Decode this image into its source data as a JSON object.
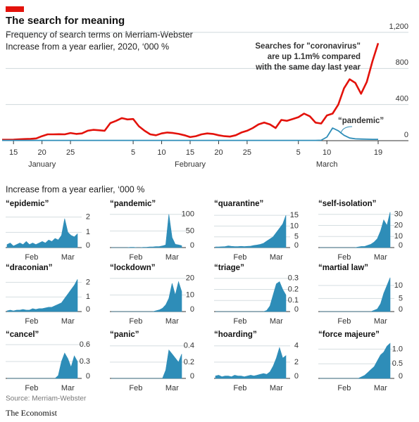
{
  "header": {
    "title": "The search for meaning",
    "subtitle": [
      "Frequency of search terms on Merriam-Webster",
      "Increase from a year earlier, 2020, ‘000 %"
    ]
  },
  "small_multiples_title": "Increase from a year earlier, ‘000 %",
  "footer": {
    "source": "Source: Merriam-Webster",
    "brand": "The Economist"
  },
  "chart_data": [
    {
      "type": "line",
      "x": [
        13,
        14,
        15,
        16,
        17,
        18,
        19,
        20,
        21,
        22,
        23,
        24,
        25,
        26,
        27,
        28,
        29,
        30,
        31,
        32,
        33,
        34,
        35,
        36,
        37,
        38,
        39,
        40,
        41,
        42,
        43,
        44,
        45,
        46,
        47,
        48,
        49,
        50,
        51,
        52,
        53,
        54,
        55,
        56,
        57,
        58,
        59,
        60,
        61,
        62,
        63,
        64,
        65,
        66,
        67,
        68,
        69,
        70,
        71,
        72,
        73,
        74,
        75,
        76,
        77,
        78,
        79
      ],
      "series": [
        {
          "color": "#e3120b",
          "values": [
            10,
            10,
            12,
            15,
            18,
            20,
            25,
            50,
            70,
            70,
            72,
            70,
            85,
            75,
            80,
            110,
            120,
            115,
            110,
            195,
            220,
            250,
            235,
            240,
            160,
            110,
            70,
            60,
            80,
            90,
            85,
            75,
            60,
            40,
            50,
            70,
            80,
            75,
            60,
            50,
            45,
            60,
            90,
            110,
            140,
            180,
            200,
            180,
            140,
            230,
            220,
            240,
            260,
            300,
            270,
            200,
            190,
            280,
            300,
            400,
            580,
            680,
            640,
            520,
            650,
            880,
            1080
          ]
        },
        {
          "color": "#2e8db8",
          "values": [
            3,
            3,
            3,
            3,
            3,
            3,
            3,
            3,
            3,
            3,
            3,
            3,
            3,
            3,
            3,
            3,
            3,
            3,
            3,
            3,
            3,
            3,
            3,
            3,
            3,
            3,
            3,
            3,
            3,
            3,
            3,
            3,
            3,
            3,
            3,
            3,
            3,
            3,
            3,
            3,
            3,
            3,
            3,
            3,
            3,
            3,
            3,
            3,
            3,
            3,
            3,
            3,
            3,
            3,
            3,
            3,
            5,
            40,
            140,
            110,
            60,
            30,
            20,
            18,
            16,
            15,
            15
          ]
        }
      ],
      "xlim": [
        13,
        79
      ],
      "xticks": [
        {
          "value": 15,
          "label": "15"
        },
        {
          "value": 20,
          "label": "20"
        },
        {
          "value": 25,
          "label": "25"
        },
        {
          "value": 36,
          "label": "5"
        },
        {
          "value": 41,
          "label": "10"
        },
        {
          "value": 46,
          "label": "15"
        },
        {
          "value": 51,
          "label": "20"
        },
        {
          "value": 56,
          "label": "25"
        },
        {
          "value": 65,
          "label": "5"
        },
        {
          "value": 70,
          "label": "10"
        },
        {
          "value": 79,
          "label": "19"
        }
      ],
      "months": [
        {
          "value": 20,
          "label": "January"
        },
        {
          "value": 46,
          "label": "February"
        },
        {
          "value": 70,
          "label": "March"
        }
      ],
      "ylim": [
        0,
        1200
      ],
      "yticks": [
        0,
        400,
        800,
        {
          "value": 1200,
          "label": "1,200"
        }
      ],
      "grid": true,
      "annotations": [
        {
          "text": [
            "Searches for \"coronavirus\"",
            "are up 1.1m% compared",
            "with the same day last year"
          ],
          "color": "#e3120b"
        },
        {
          "text": [
            "“pandemic”"
          ],
          "color": "#2e8db8"
        }
      ]
    },
    {
      "type": "area",
      "title": "“epidemic”",
      "color": "#2e8db8",
      "x": [
        13,
        16,
        19,
        22,
        25,
        28,
        31,
        34,
        37,
        40,
        43,
        46,
        49,
        52,
        55,
        58,
        61,
        64,
        67,
        70,
        73,
        76,
        79
      ],
      "values": [
        0.2,
        0.3,
        0.1,
        0.2,
        0.3,
        0.2,
        0.4,
        0.2,
        0.3,
        0.2,
        0.3,
        0.4,
        0.3,
        0.5,
        0.4,
        0.6,
        0.5,
        0.8,
        1.9,
        1.0,
        0.8,
        0.7,
        0.9
      ],
      "xlim": [
        13,
        79
      ],
      "xticks": [
        {
          "value": 36,
          "label": "Feb"
        },
        {
          "value": 70,
          "label": "Mar"
        }
      ],
      "ylim": [
        0,
        2.4
      ],
      "yticks": [
        0,
        1,
        2
      ]
    },
    {
      "type": "area",
      "title": "“pandemic”",
      "color": "#2e8db8",
      "x": [
        13,
        16,
        19,
        22,
        25,
        28,
        31,
        34,
        37,
        40,
        43,
        46,
        49,
        52,
        55,
        58,
        61,
        64,
        67,
        70,
        73,
        76,
        79
      ],
      "values": [
        0,
        0,
        0,
        0,
        0,
        0,
        1,
        1,
        0,
        0,
        1,
        1,
        2,
        2,
        3,
        3,
        5,
        8,
        100,
        30,
        10,
        8,
        6
      ],
      "xlim": [
        13,
        79
      ],
      "xticks": [
        {
          "value": 36,
          "label": "Feb"
        },
        {
          "value": 70,
          "label": "Mar"
        }
      ],
      "ylim": [
        0,
        110
      ],
      "yticks": [
        0,
        50,
        100
      ]
    },
    {
      "type": "area",
      "title": "“quarantine”",
      "color": "#2e8db8",
      "x": [
        13,
        16,
        19,
        22,
        25,
        28,
        31,
        34,
        37,
        40,
        43,
        46,
        49,
        52,
        55,
        58,
        61,
        64,
        67,
        70,
        73,
        76,
        79
      ],
      "values": [
        0.3,
        0.3,
        0.4,
        0.5,
        0.8,
        0.6,
        0.5,
        0.5,
        0.6,
        0.5,
        0.6,
        0.7,
        1,
        1.2,
        1.5,
        2,
        3,
        4,
        5,
        7,
        9,
        11,
        15
      ],
      "xlim": [
        13,
        79
      ],
      "xticks": [
        {
          "value": 36,
          "label": "Feb"
        },
        {
          "value": 70,
          "label": "Mar"
        }
      ],
      "ylim": [
        0,
        17
      ],
      "yticks": [
        0,
        5,
        10,
        15
      ]
    },
    {
      "type": "area",
      "title": "“self-isolation”",
      "color": "#2e8db8",
      "x": [
        13,
        16,
        19,
        22,
        25,
        28,
        31,
        34,
        37,
        40,
        43,
        46,
        49,
        52,
        55,
        58,
        61,
        64,
        67,
        70,
        73,
        76,
        79
      ],
      "values": [
        0,
        0,
        0,
        0,
        0,
        0,
        0,
        0,
        0,
        0,
        0,
        0,
        0.5,
        1,
        1,
        2,
        3,
        5,
        8,
        15,
        25,
        20,
        32
      ],
      "xlim": [
        13,
        79
      ],
      "xticks": [
        {
          "value": 36,
          "label": "Feb"
        },
        {
          "value": 70,
          "label": "Mar"
        }
      ],
      "ylim": [
        0,
        33
      ],
      "yticks": [
        0,
        10,
        20,
        30
      ]
    },
    {
      "type": "area",
      "title": "“draconian”",
      "color": "#2e8db8",
      "x": [
        13,
        16,
        19,
        22,
        25,
        28,
        31,
        34,
        37,
        40,
        43,
        46,
        49,
        52,
        55,
        58,
        61,
        64,
        67,
        70,
        73,
        76,
        79
      ],
      "values": [
        0.05,
        0.1,
        0.05,
        0.1,
        0.1,
        0.15,
        0.1,
        0.1,
        0.2,
        0.15,
        0.2,
        0.2,
        0.25,
        0.3,
        0.3,
        0.4,
        0.5,
        0.6,
        0.9,
        1.2,
        1.5,
        1.8,
        2.2
      ],
      "xlim": [
        13,
        79
      ],
      "xticks": [
        {
          "value": 36,
          "label": "Feb"
        },
        {
          "value": 70,
          "label": "Mar"
        }
      ],
      "ylim": [
        0,
        2.5
      ],
      "yticks": [
        0,
        1,
        2
      ]
    },
    {
      "type": "area",
      "title": "“lockdown”",
      "color": "#2e8db8",
      "x": [
        13,
        16,
        19,
        22,
        25,
        28,
        31,
        34,
        37,
        40,
        43,
        46,
        49,
        52,
        55,
        58,
        61,
        64,
        67,
        70,
        73,
        76,
        79
      ],
      "values": [
        0,
        0,
        0,
        0,
        0,
        0,
        0,
        0,
        0,
        0,
        0,
        0,
        0,
        0,
        0.5,
        1,
        2,
        4,
        8,
        17,
        10,
        18,
        12
      ],
      "xlim": [
        13,
        79
      ],
      "xticks": [
        {
          "value": 36,
          "label": "Feb"
        },
        {
          "value": 70,
          "label": "Mar"
        }
      ],
      "ylim": [
        0,
        22
      ],
      "yticks": [
        0,
        10,
        20
      ]
    },
    {
      "type": "area",
      "title": "“triage”",
      "color": "#2e8db8",
      "x": [
        13,
        16,
        19,
        22,
        25,
        28,
        31,
        34,
        37,
        40,
        43,
        46,
        49,
        52,
        55,
        58,
        61,
        64,
        67,
        70,
        73,
        76,
        79
      ],
      "values": [
        0,
        0,
        0,
        0,
        0,
        0,
        0,
        0,
        0,
        0,
        0,
        0,
        0,
        0,
        0,
        0,
        0.01,
        0.05,
        0.15,
        0.25,
        0.27,
        0.2,
        0.15
      ],
      "xlim": [
        13,
        79
      ],
      "xticks": [
        {
          "value": 36,
          "label": "Feb"
        },
        {
          "value": 70,
          "label": "Mar"
        }
      ],
      "ylim": [
        0,
        0.33
      ],
      "yticks": [
        0,
        0.1,
        0.2,
        0.3
      ]
    },
    {
      "type": "area",
      "title": "“martial law”",
      "color": "#2e8db8",
      "x": [
        13,
        16,
        19,
        22,
        25,
        28,
        31,
        34,
        37,
        40,
        43,
        46,
        49,
        52,
        55,
        58,
        61,
        64,
        67,
        70,
        73,
        76,
        79
      ],
      "values": [
        0,
        0,
        0,
        0,
        0,
        0,
        0,
        0,
        0,
        0,
        0,
        0,
        0,
        0,
        0,
        0,
        0,
        0.5,
        1,
        3,
        7,
        10,
        13
      ],
      "xlim": [
        13,
        79
      ],
      "xticks": [
        {
          "value": 36,
          "label": "Feb"
        },
        {
          "value": 70,
          "label": "Mar"
        }
      ],
      "ylim": [
        0,
        14
      ],
      "yticks": [
        0,
        5,
        10
      ]
    },
    {
      "type": "area",
      "title": "“cancel”",
      "color": "#2e8db8",
      "x": [
        13,
        16,
        19,
        22,
        25,
        28,
        31,
        34,
        37,
        40,
        43,
        46,
        49,
        52,
        55,
        58,
        61,
        64,
        67,
        70,
        73,
        76,
        79
      ],
      "values": [
        0,
        0,
        0,
        0,
        0,
        0,
        0,
        0,
        0,
        0,
        0,
        0,
        0,
        0,
        0,
        0,
        0.05,
        0.3,
        0.45,
        0.35,
        0.2,
        0.4,
        0.3
      ],
      "xlim": [
        13,
        79
      ],
      "xticks": [
        {
          "value": 36,
          "label": "Feb"
        },
        {
          "value": 70,
          "label": "Mar"
        }
      ],
      "ylim": [
        0,
        0.65
      ],
      "yticks": [
        0,
        0.3,
        0.6
      ]
    },
    {
      "type": "area",
      "title": "“panic”",
      "color": "#2e8db8",
      "x": [
        13,
        16,
        19,
        22,
        25,
        28,
        31,
        34,
        37,
        40,
        43,
        46,
        49,
        52,
        55,
        58,
        61,
        64,
        67,
        70,
        73,
        76,
        79
      ],
      "values": [
        0,
        0,
        0,
        0,
        0,
        0,
        0,
        0,
        0,
        0,
        0,
        0,
        0,
        0,
        0,
        0,
        0,
        0.1,
        0.35,
        0.3,
        0.25,
        0.2,
        0.3
      ],
      "xlim": [
        13,
        79
      ],
      "xticks": [
        {
          "value": 36,
          "label": "Feb"
        },
        {
          "value": 70,
          "label": "Mar"
        }
      ],
      "ylim": [
        0,
        0.45
      ],
      "yticks": [
        0,
        0.2,
        0.4
      ]
    },
    {
      "type": "area",
      "title": "“hoarding”",
      "color": "#2e8db8",
      "x": [
        13,
        16,
        19,
        22,
        25,
        28,
        31,
        34,
        37,
        40,
        43,
        46,
        49,
        52,
        55,
        58,
        61,
        64,
        67,
        70,
        73,
        76,
        79
      ],
      "values": [
        0.3,
        0.4,
        0.2,
        0.3,
        0.3,
        0.2,
        0.4,
        0.3,
        0.3,
        0.2,
        0.3,
        0.4,
        0.3,
        0.4,
        0.5,
        0.6,
        0.5,
        0.8,
        1.5,
        2.5,
        3.8,
        2.5,
        2.8
      ],
      "xlim": [
        13,
        79
      ],
      "xticks": [
        {
          "value": 36,
          "label": "Feb"
        },
        {
          "value": 70,
          "label": "Mar"
        }
      ],
      "ylim": [
        0,
        4.5
      ],
      "yticks": [
        0,
        2,
        4
      ]
    },
    {
      "type": "area",
      "title": "“force majeure”",
      "color": "#2e8db8",
      "x": [
        13,
        16,
        19,
        22,
        25,
        28,
        31,
        34,
        37,
        40,
        43,
        46,
        49,
        52,
        55,
        58,
        61,
        64,
        67,
        70,
        73,
        76,
        79
      ],
      "values": [
        0,
        0,
        0,
        0,
        0,
        0,
        0,
        0,
        0,
        0,
        0,
        0,
        0,
        0.05,
        0.1,
        0.2,
        0.3,
        0.4,
        0.6,
        0.8,
        0.9,
        1.1,
        1.2
      ],
      "xlim": [
        13,
        79
      ],
      "xticks": [
        {
          "value": 36,
          "label": "Feb"
        },
        {
          "value": 70,
          "label": "Mar"
        }
      ],
      "ylim": [
        0,
        1.25
      ],
      "yticks": [
        0,
        0.5,
        {
          "value": 1,
          "label": "1.0"
        }
      ]
    }
  ]
}
